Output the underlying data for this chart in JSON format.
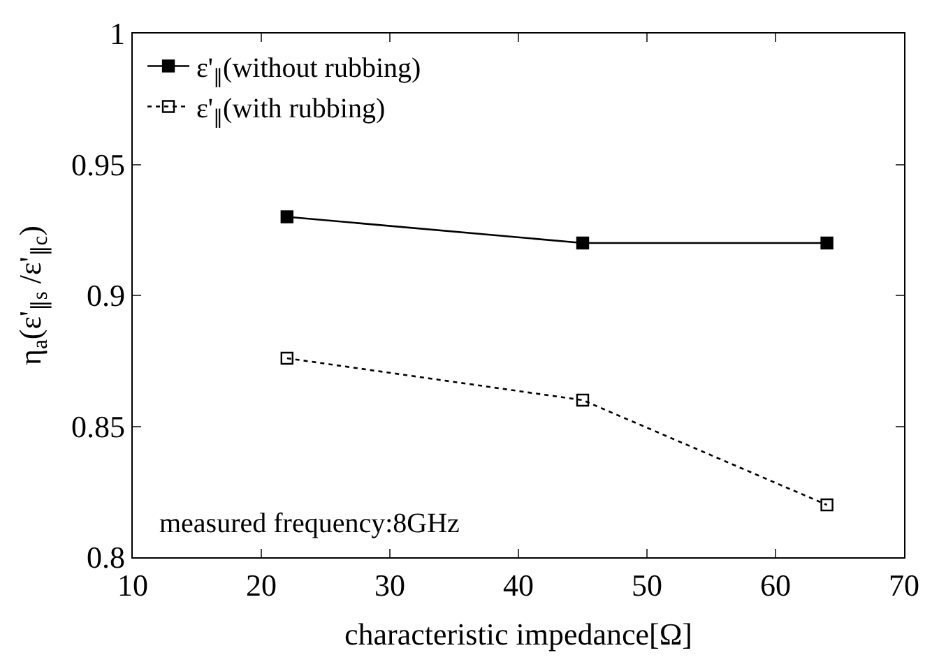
{
  "chart_data": {
    "type": "line",
    "xlabel": "characteristic impedance[Ω]",
    "ylabel": "η$_{a}$(ε'$_{∥s}$ /ε'$_{∥c}$)",
    "x": [
      22,
      45,
      64
    ],
    "series": [
      {
        "name": "ε'$_{∥}$(without rubbing)",
        "color": "#000000",
        "values": [
          0.93,
          0.92,
          0.92
        ],
        "line_style": "solid",
        "marker": "square"
      },
      {
        "name": "ε'$_{∥}$(with rubbing)",
        "color": "#000000",
        "values": [
          0.876,
          0.86,
          0.82
        ],
        "line_style": "dotted",
        "marker": "square-open"
      }
    ],
    "xlim": [
      10,
      70
    ],
    "xticks": [
      10,
      20,
      30,
      40,
      50,
      60,
      70
    ],
    "ylim": [
      0.8,
      1
    ],
    "yticks": [
      0.8,
      0.85,
      0.9,
      0.95,
      1
    ],
    "legend": "top left",
    "annotations": [
      "measured frequency:8GHz"
    ]
  }
}
